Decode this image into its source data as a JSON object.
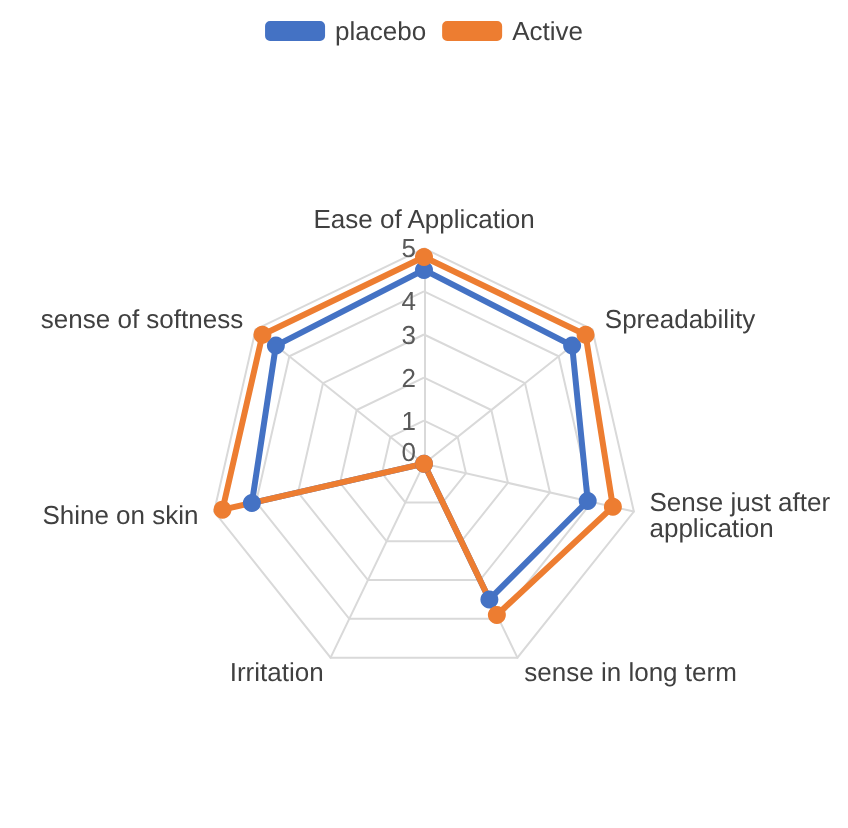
{
  "chart_data": {
    "type": "radar",
    "categories": [
      "Ease of Application",
      "Spreadability",
      "Sense just after application",
      "sense in long term",
      "Irritation",
      "Shine on skin",
      "sense of softness"
    ],
    "series": [
      {
        "name": "placebo",
        "color": "#4472c4",
        "values": [
          4.5,
          4.4,
          3.9,
          3.5,
          0,
          4.1,
          4.4
        ]
      },
      {
        "name": "Active",
        "color": "#ed7d31",
        "values": [
          4.8,
          4.8,
          4.5,
          3.9,
          0,
          4.8,
          4.8
        ]
      }
    ],
    "ylim": [
      0,
      5
    ],
    "yticks": [
      0,
      1,
      2,
      3,
      4,
      5
    ],
    "legend": "top",
    "marker": "circle",
    "grid": true
  }
}
